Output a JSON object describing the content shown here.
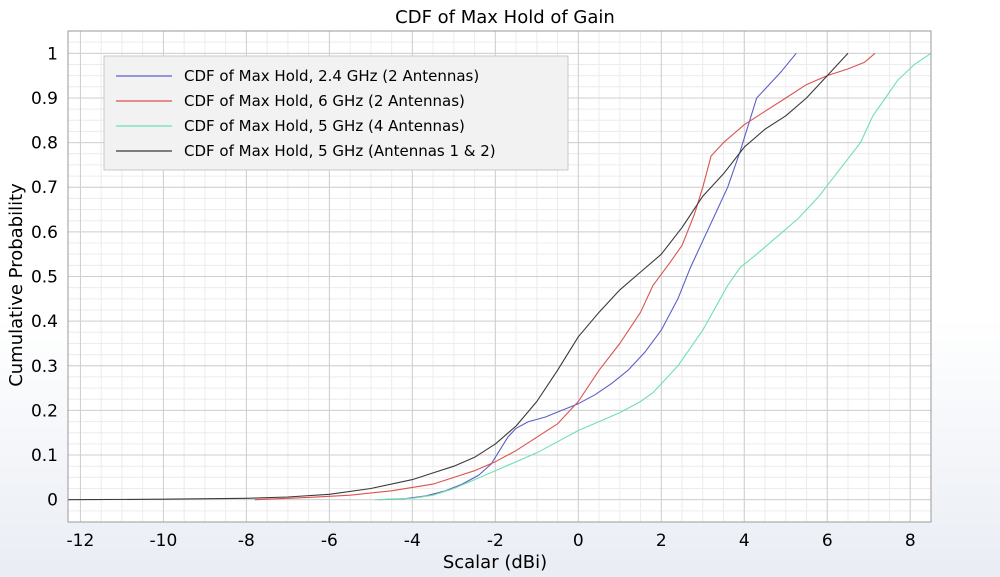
{
  "chart_data": {
    "type": "line",
    "title": "CDF of Max Hold of Gain",
    "xlabel": "Scalar (dBi)",
    "ylabel": "Cumulative Probability",
    "xlim": [
      -12.3,
      8.5
    ],
    "ylim": [
      -0.05,
      1.05
    ],
    "xticks": [
      -12,
      -10,
      -8,
      -6,
      -4,
      -2,
      0,
      2,
      4,
      6,
      8
    ],
    "yticks": [
      0,
      0.1,
      0.2,
      0.3,
      0.4,
      0.5,
      0.6,
      0.7,
      0.8,
      0.9,
      1
    ],
    "x_minor_step": 0.5,
    "y_minor_step": 0.025,
    "grid": true,
    "legend_position": "top-left",
    "series": [
      {
        "name": "CDF of Max Hold, 2.4 GHz (2 Antennas)",
        "color": "#5b5fc7",
        "points": [
          [
            -4.8,
            0
          ],
          [
            -4.2,
            0.002
          ],
          [
            -3.7,
            0.008
          ],
          [
            -3.2,
            0.02
          ],
          [
            -2.8,
            0.035
          ],
          [
            -2.4,
            0.055
          ],
          [
            -2.1,
            0.08
          ],
          [
            -1.9,
            0.11
          ],
          [
            -1.7,
            0.14
          ],
          [
            -1.5,
            0.16
          ],
          [
            -1.2,
            0.175
          ],
          [
            -0.8,
            0.185
          ],
          [
            -0.4,
            0.2
          ],
          [
            0,
            0.215
          ],
          [
            0.4,
            0.235
          ],
          [
            0.8,
            0.26
          ],
          [
            1.2,
            0.29
          ],
          [
            1.6,
            0.33
          ],
          [
            2.0,
            0.38
          ],
          [
            2.4,
            0.45
          ],
          [
            2.7,
            0.52
          ],
          [
            3.0,
            0.58
          ],
          [
            3.3,
            0.64
          ],
          [
            3.6,
            0.7
          ],
          [
            3.9,
            0.78
          ],
          [
            4.1,
            0.84
          ],
          [
            4.3,
            0.9
          ],
          [
            4.6,
            0.93
          ],
          [
            4.9,
            0.96
          ],
          [
            5.25,
            1.0
          ]
        ]
      },
      {
        "name": "CDF of Max Hold, 6 GHz (2 Antennas)",
        "color": "#d9534f",
        "points": [
          [
            -7.8,
            0
          ],
          [
            -6.5,
            0.005
          ],
          [
            -5.5,
            0.01
          ],
          [
            -4.5,
            0.02
          ],
          [
            -3.5,
            0.035
          ],
          [
            -3.0,
            0.05
          ],
          [
            -2.5,
            0.065
          ],
          [
            -2.0,
            0.085
          ],
          [
            -1.5,
            0.11
          ],
          [
            -1.0,
            0.14
          ],
          [
            -0.5,
            0.17
          ],
          [
            0,
            0.22
          ],
          [
            0.5,
            0.29
          ],
          [
            1.0,
            0.35
          ],
          [
            1.5,
            0.42
          ],
          [
            1.8,
            0.48
          ],
          [
            2.2,
            0.53
          ],
          [
            2.5,
            0.57
          ],
          [
            2.8,
            0.64
          ],
          [
            3.0,
            0.7
          ],
          [
            3.2,
            0.77
          ],
          [
            3.5,
            0.8
          ],
          [
            4.0,
            0.84
          ],
          [
            4.5,
            0.87
          ],
          [
            5.0,
            0.9
          ],
          [
            5.5,
            0.93
          ],
          [
            6.0,
            0.95
          ],
          [
            6.5,
            0.965
          ],
          [
            6.9,
            0.98
          ],
          [
            7.15,
            1.0
          ]
        ]
      },
      {
        "name": "CDF of Max Hold, 5 GHz (4 Antennas)",
        "color": "#6fe0ae",
        "points": [
          [
            -4.9,
            0
          ],
          [
            -4.0,
            0.003
          ],
          [
            -3.5,
            0.01
          ],
          [
            -3.0,
            0.025
          ],
          [
            -2.5,
            0.045
          ],
          [
            -2.0,
            0.065
          ],
          [
            -1.5,
            0.085
          ],
          [
            -1.0,
            0.105
          ],
          [
            -0.5,
            0.13
          ],
          [
            0,
            0.155
          ],
          [
            0.5,
            0.175
          ],
          [
            1.0,
            0.195
          ],
          [
            1.5,
            0.22
          ],
          [
            1.8,
            0.24
          ],
          [
            2.1,
            0.27
          ],
          [
            2.4,
            0.3
          ],
          [
            2.7,
            0.34
          ],
          [
            3.0,
            0.38
          ],
          [
            3.3,
            0.43
          ],
          [
            3.6,
            0.48
          ],
          [
            3.9,
            0.52
          ],
          [
            4.3,
            0.55
          ],
          [
            4.8,
            0.59
          ],
          [
            5.3,
            0.63
          ],
          [
            5.8,
            0.68
          ],
          [
            6.3,
            0.74
          ],
          [
            6.8,
            0.8
          ],
          [
            7.1,
            0.86
          ],
          [
            7.4,
            0.9
          ],
          [
            7.7,
            0.94
          ],
          [
            8.1,
            0.975
          ],
          [
            8.5,
            1.0
          ]
        ]
      },
      {
        "name": "CDF of Max Hold, 5 GHz (Antennas 1 & 2)",
        "color": "#3a3a3a",
        "points": [
          [
            -12.3,
            0
          ],
          [
            -10,
            0.001
          ],
          [
            -8,
            0.003
          ],
          [
            -7,
            0.006
          ],
          [
            -6,
            0.012
          ],
          [
            -5,
            0.025
          ],
          [
            -4,
            0.045
          ],
          [
            -3.5,
            0.06
          ],
          [
            -3,
            0.075
          ],
          [
            -2.5,
            0.095
          ],
          [
            -2,
            0.125
          ],
          [
            -1.5,
            0.165
          ],
          [
            -1,
            0.22
          ],
          [
            -0.5,
            0.29
          ],
          [
            0,
            0.365
          ],
          [
            0.5,
            0.42
          ],
          [
            1.0,
            0.47
          ],
          [
            1.5,
            0.51
          ],
          [
            2.0,
            0.55
          ],
          [
            2.5,
            0.61
          ],
          [
            3.0,
            0.68
          ],
          [
            3.5,
            0.73
          ],
          [
            4.0,
            0.79
          ],
          [
            4.5,
            0.83
          ],
          [
            5.0,
            0.86
          ],
          [
            5.5,
            0.9
          ],
          [
            6.0,
            0.95
          ],
          [
            6.5,
            1.0
          ]
        ]
      }
    ]
  }
}
